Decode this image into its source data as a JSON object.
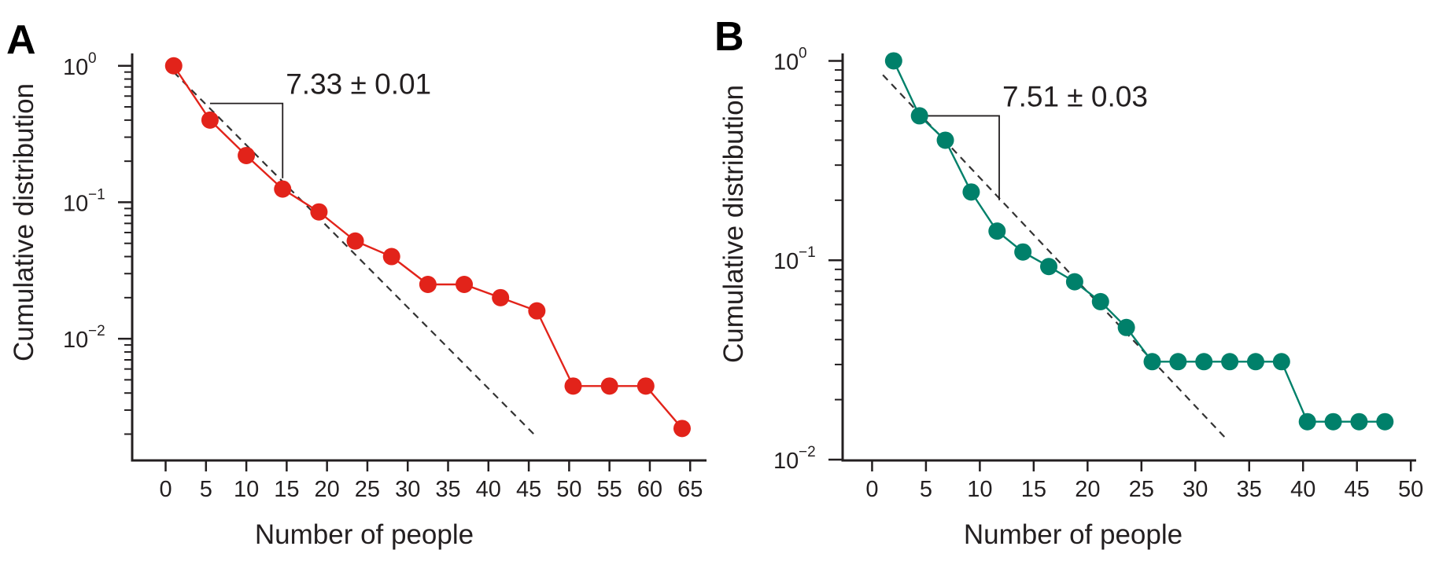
{
  "chart_data": [
    {
      "panel": "A",
      "type": "line",
      "xlabel": "Number of people",
      "ylabel": "Cumulative distribution",
      "yscale": "log",
      "xlim": [
        -2,
        68
      ],
      "ylim": [
        0.0013,
        1.2
      ],
      "xticks": [
        0,
        5,
        10,
        15,
        20,
        25,
        30,
        35,
        40,
        45,
        50,
        55,
        60,
        65
      ],
      "xtick_labels": [
        "0",
        "5",
        "10",
        "15",
        "20",
        "25",
        "30",
        "35",
        "40",
        "45",
        "50",
        "55",
        "60",
        "65"
      ],
      "yticks": [
        {
          "value": 1,
          "base": "10",
          "exp": "0"
        },
        {
          "value": 0.1,
          "base": "10",
          "exp": "−1"
        },
        {
          "value": 0.01,
          "base": "10",
          "exp": "−2"
        }
      ],
      "minor_yticks": [
        0.002,
        0.003,
        0.004,
        0.005,
        0.006,
        0.007,
        0.008,
        0.009,
        0.02,
        0.03,
        0.04,
        0.05,
        0.06,
        0.07,
        0.08,
        0.09,
        0.2,
        0.3,
        0.4,
        0.5,
        0.6,
        0.7,
        0.8,
        0.9
      ],
      "series": [
        {
          "color": "#e2231a",
          "x": [
            1,
            5.5,
            10,
            14.5,
            19,
            23.5,
            28,
            32.5,
            37,
            41.5,
            46,
            50.5,
            55,
            59.5,
            64
          ],
          "y": [
            1.0,
            0.4,
            0.22,
            0.125,
            0.085,
            0.052,
            0.04,
            0.025,
            0.025,
            0.02,
            0.016,
            0.0045,
            0.0045,
            0.0045,
            0.0022
          ]
        }
      ],
      "fit_line": {
        "x": [
          1,
          46
        ],
        "y": [
          0.9,
          0.0019
        ],
        "style": "dashed",
        "color": "#333333"
      },
      "annotation": {
        "text": "7.33 ± 0.01",
        "slope_x": [
          5.5,
          14.5
        ],
        "slope_y": [
          0.53,
          0.15
        ]
      }
    },
    {
      "panel": "B",
      "type": "line",
      "xlabel": "Number of people",
      "ylabel": "Cumulative distribution",
      "yscale": "log",
      "xlim": [
        -1.2,
        50.5
      ],
      "ylim": [
        0.01,
        1.07
      ],
      "xticks": [
        0,
        5,
        10,
        15,
        20,
        25,
        30,
        35,
        40,
        45,
        50
      ],
      "xtick_labels": [
        "0",
        "5",
        "10",
        "15",
        "20",
        "25",
        "30",
        "35",
        "40",
        "45",
        "50"
      ],
      "yticks": [
        {
          "value": 1,
          "base": "10",
          "exp": "0"
        },
        {
          "value": 0.1,
          "base": "10",
          "exp": "−1"
        },
        {
          "value": 0.01,
          "base": "10",
          "exp": "−2"
        }
      ],
      "minor_yticks": [
        0.02,
        0.03,
        0.04,
        0.05,
        0.06,
        0.07,
        0.08,
        0.09,
        0.2,
        0.3,
        0.4,
        0.5,
        0.6,
        0.7,
        0.8,
        0.9
      ],
      "series": [
        {
          "color": "#00806a",
          "x": [
            2,
            4.4,
            6.8,
            9.2,
            11.6,
            14,
            16.4,
            18.8,
            21.2,
            23.6,
            26,
            28.4,
            30.8,
            33.2,
            35.6,
            38,
            40.4,
            42.8,
            45.2,
            47.6
          ],
          "y": [
            1.0,
            0.53,
            0.4,
            0.22,
            0.14,
            0.11,
            0.093,
            0.078,
            0.062,
            0.046,
            0.031,
            0.031,
            0.031,
            0.031,
            0.031,
            0.031,
            0.0155,
            0.0155,
            0.0155,
            0.0155
          ]
        }
      ],
      "fit_line": {
        "x": [
          1,
          33
        ],
        "y": [
          0.85,
          0.0125
        ],
        "style": "dashed",
        "color": "#333333"
      },
      "annotation": {
        "text": "7.51 ± 0.03",
        "slope_x": [
          4.4,
          11.8
        ],
        "slope_y": [
          0.53,
          0.2
        ]
      }
    }
  ]
}
